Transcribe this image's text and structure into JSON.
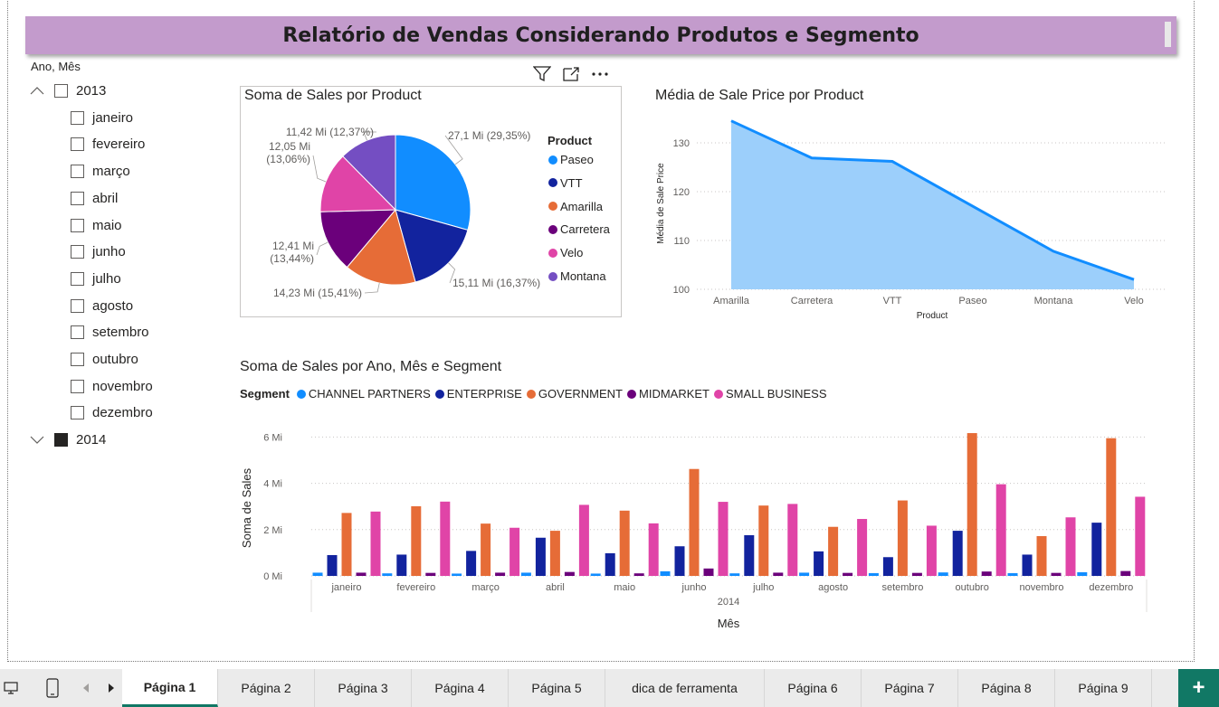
{
  "report": {
    "title": "Relatório de Vendas Considerando Produtos e Segmento"
  },
  "slicer": {
    "title": "Ano, Mês",
    "years": [
      {
        "label": "2013",
        "expanded": true,
        "checked": false,
        "months": [
          "janeiro",
          "fevereiro",
          "março",
          "abril",
          "maio",
          "junho",
          "julho",
          "agosto",
          "setembro",
          "outubro",
          "novembro",
          "dezembro"
        ]
      },
      {
        "label": "2014",
        "expanded": false,
        "checked": true,
        "months": []
      }
    ]
  },
  "visual_header": {
    "icons": [
      "filter-icon",
      "focus-mode-icon",
      "more-options-icon"
    ]
  },
  "chart_data": [
    {
      "type": "pie",
      "title": "Soma de Sales por Product",
      "legend_title": "Product",
      "legend_position": "right",
      "slices": [
        {
          "name": "Paseo",
          "value": 27.1,
          "label": "27,1 Mi (29,35%)",
          "percent": 29.35,
          "color": "#118dff"
        },
        {
          "name": "VTT",
          "value": 15.11,
          "label": "15,11 Mi (16,37%)",
          "percent": 16.37,
          "color": "#12239e"
        },
        {
          "name": "Amarilla",
          "value": 14.23,
          "label": "14,23 Mi (15,41%)",
          "percent": 15.41,
          "color": "#e66c37"
        },
        {
          "name": "Carretera",
          "value": 12.41,
          "label": "12,41 Mi (13,44%)",
          "percent": 13.44,
          "color": "#6b007b"
        },
        {
          "name": "Velo",
          "value": 12.05,
          "label": "12,05 Mi (13,06%)",
          "percent": 13.06,
          "color": "#e044a7"
        },
        {
          "name": "Montana",
          "value": 11.42,
          "label": "11,42 Mi (12,37%)",
          "percent": 12.37,
          "color": "#744ec2"
        }
      ]
    },
    {
      "type": "area",
      "title": "Média de Sale Price por Product",
      "xlabel": "Product",
      "ylabel": "Média de Sale Price",
      "categories": [
        "Amarilla",
        "Carretera",
        "VTT",
        "Paseo",
        "Montana",
        "Velo"
      ],
      "values": [
        134.5,
        126.9,
        126.2,
        117.0,
        107.8,
        102.0
      ],
      "ylim": [
        100,
        135
      ],
      "yticks": [
        100,
        110,
        120,
        130
      ],
      "grid": true,
      "line_color": "#118dff",
      "fill_color": "#9ccffb"
    },
    {
      "type": "bar",
      "title": "Soma de Sales por Ano, Mês e Segment",
      "legend_title": "Segment",
      "legend_position": "top-left",
      "xlabel": "Mês",
      "x_group_label": "2014",
      "ylabel": "Soma de Sales",
      "ylim": [
        0,
        6.5
      ],
      "yticks": [
        {
          "value": 0,
          "label": "0 Mi"
        },
        {
          "value": 2,
          "label": "2 Mi"
        },
        {
          "value": 4,
          "label": "4 Mi"
        },
        {
          "value": 6,
          "label": "6 Mi"
        }
      ],
      "grid": true,
      "categories": [
        "janeiro",
        "fevereiro",
        "março",
        "abril",
        "maio",
        "junho",
        "julho",
        "agosto",
        "setembro",
        "outubro",
        "novembro",
        "dezembro"
      ],
      "series": [
        {
          "name": "CHANNEL PARTNERS",
          "color": "#118dff",
          "values": [
            0.14,
            0.11,
            0.1,
            0.14,
            0.1,
            0.2,
            0.11,
            0.14,
            0.12,
            0.15,
            0.12,
            0.16
          ]
        },
        {
          "name": "ENTERPRISE",
          "color": "#12239e",
          "values": [
            0.9,
            0.92,
            1.08,
            1.65,
            0.98,
            1.28,
            1.76,
            1.06,
            0.81,
            1.95,
            0.92,
            2.3
          ]
        },
        {
          "name": "GOVERNMENT",
          "color": "#e66c37",
          "values": [
            2.72,
            3.01,
            2.26,
            1.95,
            2.82,
            4.62,
            3.04,
            2.12,
            3.26,
            6.17,
            1.72,
            5.95
          ]
        },
        {
          "name": "MIDMARKET",
          "color": "#6b007b",
          "values": [
            0.14,
            0.13,
            0.14,
            0.17,
            0.11,
            0.32,
            0.14,
            0.13,
            0.13,
            0.19,
            0.13,
            0.21
          ]
        },
        {
          "name": "SMALL BUSINESS",
          "color": "#e044a7",
          "values": [
            2.78,
            3.21,
            2.08,
            3.07,
            2.27,
            3.2,
            3.11,
            2.46,
            2.17,
            3.96,
            2.53,
            3.42
          ]
        }
      ]
    }
  ],
  "tabs": {
    "pages": [
      "Página 1",
      "Página 2",
      "Página 3",
      "Página 4",
      "Página 5",
      "dica de ferramenta",
      "Página 6",
      "Página 7",
      "Página 8",
      "Página 9"
    ],
    "active_index": 0,
    "add_label": "+"
  }
}
